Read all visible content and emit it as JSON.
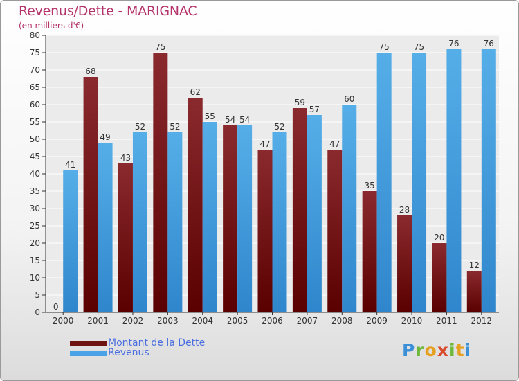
{
  "chart_data": {
    "type": "bar",
    "title": "Revenus/Dette - MARIGNAC",
    "subtitle": "(en milliers d'€)",
    "categories": [
      "2000",
      "2001",
      "2002",
      "2003",
      "2004",
      "2005",
      "2006",
      "2007",
      "2008",
      "2009",
      "2010",
      "2011",
      "2012"
    ],
    "series": [
      {
        "name": "Montant de la Dette",
        "color": "#7a1a1a",
        "values": [
          0,
          68,
          43,
          75,
          62,
          54,
          47,
          59,
          47,
          35,
          28,
          20,
          12
        ]
      },
      {
        "name": "Revenus",
        "color": "#4aa3e6",
        "values": [
          41,
          49,
          52,
          52,
          55,
          54,
          52,
          57,
          60,
          75,
          75,
          76,
          76
        ]
      }
    ],
    "ylim": [
      0,
      80
    ],
    "yticks": [
      0,
      5,
      10,
      15,
      20,
      25,
      30,
      35,
      40,
      45,
      50,
      55,
      60,
      65,
      70,
      75,
      80
    ],
    "grid": true,
    "legend": "bottom-left",
    "data_labels": true
  },
  "logo": {
    "text": "Proxiti"
  }
}
